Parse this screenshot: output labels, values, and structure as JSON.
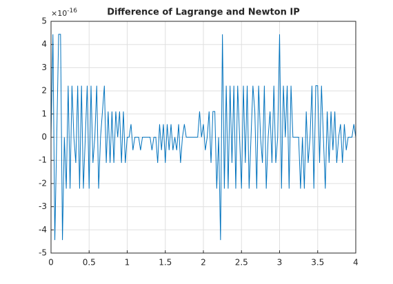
{
  "chart_data": {
    "type": "line",
    "title": "Difference of Lagrange and Newton IP",
    "y_exponent_base": "×10",
    "y_exponent": "-16",
    "x": [
      0,
      0.025,
      0.05,
      0.075,
      0.1,
      0.125,
      0.15,
      0.175,
      0.2,
      0.225,
      0.25,
      0.275,
      0.3,
      0.325,
      0.35,
      0.375,
      0.4,
      0.425,
      0.45,
      0.475,
      0.5,
      0.525,
      0.55,
      0.575,
      0.6,
      0.625,
      0.65,
      0.675,
      0.7,
      0.725,
      0.75,
      0.775,
      0.8,
      0.825,
      0.85,
      0.875,
      0.9,
      0.925,
      0.95,
      0.975,
      1,
      1.025,
      1.05,
      1.075,
      1.1,
      1.125,
      1.15,
      1.175,
      1.2,
      1.225,
      1.25,
      1.275,
      1.3,
      1.325,
      1.35,
      1.375,
      1.4,
      1.425,
      1.45,
      1.475,
      1.5,
      1.525,
      1.55,
      1.575,
      1.6,
      1.625,
      1.65,
      1.675,
      1.7,
      1.725,
      1.75,
      1.775,
      1.8,
      1.825,
      1.85,
      1.875,
      1.9,
      1.925,
      1.95,
      1.975,
      2,
      2.025,
      2.05,
      2.075,
      2.1,
      2.125,
      2.15,
      2.175,
      2.2,
      2.225,
      2.25,
      2.275,
      2.3,
      2.325,
      2.35,
      2.375,
      2.4,
      2.425,
      2.45,
      2.475,
      2.5,
      2.525,
      2.55,
      2.575,
      2.6,
      2.625,
      2.65,
      2.675,
      2.7,
      2.725,
      2.75,
      2.775,
      2.8,
      2.825,
      2.85,
      2.875,
      2.9,
      2.925,
      2.95,
      2.975,
      3,
      3.025,
      3.05,
      3.075,
      3.1,
      3.125,
      3.15,
      3.175,
      3.2,
      3.225,
      3.25,
      3.275,
      3.3,
      3.325,
      3.35,
      3.375,
      3.4,
      3.425,
      3.45,
      3.475,
      3.5,
      3.525,
      3.55,
      3.575,
      3.6,
      3.625,
      3.65,
      3.675,
      3.7,
      3.725,
      3.75,
      3.775,
      3.8,
      3.825,
      3.85,
      3.875,
      3.9,
      3.925,
      3.95,
      3.975,
      4
    ],
    "series": [
      {
        "color": "#0072bd",
        "values": [
          0,
          4.44,
          -4.44,
          0,
          4.44,
          4.44,
          -4.44,
          0,
          -2.22,
          2.22,
          -2.22,
          2.22,
          0,
          -1.11,
          2.22,
          -2.22,
          2.22,
          -2.22,
          0,
          2.22,
          -2.22,
          2.22,
          -1.11,
          0,
          2.22,
          -2.22,
          0,
          1.11,
          2.22,
          -1.11,
          1.11,
          -1.11,
          1.11,
          -1.11,
          1.11,
          0,
          1.11,
          -1.11,
          1.11,
          -1.11,
          0,
          0,
          0.56,
          -0.56,
          0,
          0,
          0,
          -0.56,
          0,
          0,
          0,
          0,
          0,
          -0.56,
          0,
          0,
          -1.11,
          0.56,
          -0.56,
          0.56,
          -1.11,
          0.56,
          -0.56,
          0.56,
          -0.56,
          0,
          -0.56,
          0.56,
          -1.11,
          0,
          0.56,
          0,
          0,
          0,
          0,
          0,
          0,
          0,
          1.11,
          0,
          0.56,
          -0.56,
          0,
          1.11,
          -1.11,
          1.11,
          1.11,
          -2.22,
          0,
          -4.44,
          4.44,
          -2.22,
          2.22,
          -2.22,
          2.22,
          -1.11,
          2.22,
          -2.22,
          2.22,
          0,
          -2.22,
          2.22,
          -1.11,
          2.22,
          -2.22,
          0,
          2.22,
          1.11,
          -2.22,
          2.22,
          0,
          -1.11,
          2.22,
          -2.22,
          0,
          1.11,
          -1.11,
          2.22,
          -1.11,
          0,
          4.44,
          -2.22,
          2.22,
          0,
          2.22,
          -2.22,
          2.22,
          0,
          0,
          0,
          0,
          -2.22,
          0,
          -2.22,
          1.11,
          -1.11,
          0,
          2.22,
          -2.22,
          2.22,
          2.22,
          -1.11,
          2.22,
          0,
          -2.22,
          1.11,
          -1.11,
          1.11,
          -0.56,
          1.11,
          -1.11,
          0,
          0.56,
          -1.11,
          0.56,
          -0.56,
          0,
          0,
          0,
          0.56,
          0
        ]
      }
    ],
    "xlim": [
      0,
      4
    ],
    "xticks": [
      0,
      0.5,
      1,
      1.5,
      2,
      2.5,
      3,
      3.5,
      4
    ],
    "ylim": [
      -5,
      5
    ],
    "yticks": [
      -5,
      -4,
      -3,
      -2,
      -1,
      0,
      1,
      2,
      3,
      4,
      5
    ],
    "grid": true
  }
}
